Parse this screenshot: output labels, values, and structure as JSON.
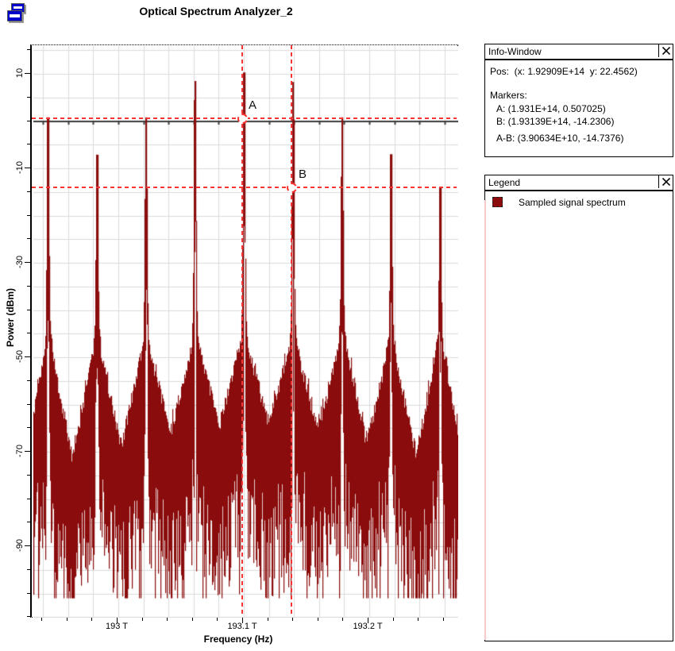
{
  "window": {
    "title": "Optical Spectrum Analyzer_2"
  },
  "info_window": {
    "title": "Info-Window",
    "pos_line": "Pos:  (x: 1.92909E+14  y: 22.4562)",
    "markers_heading": "Markers:",
    "marker_a_line": "A: (1.931E+14, 0.507025)",
    "marker_b_line": "B: (1.93139E+14, -14.2306)",
    "marker_ab_line": "A-B: (3.90634E+10, -14.7376)"
  },
  "legend": {
    "title": "Legend",
    "series": [
      {
        "label": "Sampled signal spectrum",
        "color": "#8a0c0c"
      }
    ]
  },
  "chart_data": {
    "type": "line",
    "title": "Optical Spectrum Analyzer_2",
    "xlabel": "Frequency (Hz)",
    "ylabel": "Power (dBm)",
    "grid": true,
    "series_color": "#8a0c0c",
    "x_range": [
      192932300000000.0,
      193270900000000.0
    ],
    "y_range": [
      -105.1,
      15.9
    ],
    "x_ticks": [
      {
        "value": 193000000000000.0,
        "label": "193 T"
      },
      {
        "value": 193100000000000.0,
        "label": "193.1 T"
      },
      {
        "value": 193200000000000.0,
        "label": "193.2 T"
      }
    ],
    "y_ticks": [
      {
        "value": 10,
        "label": "10"
      },
      {
        "value": -10,
        "label": "-10"
      },
      {
        "value": -30,
        "label": "-30"
      },
      {
        "value": -50,
        "label": "-50"
      },
      {
        "value": -70,
        "label": "-70"
      },
      {
        "value": -90,
        "label": "-90"
      }
    ],
    "x_minor_step": 20000000000.0,
    "y_minor_step": 5,
    "zero_line_dbm": 0,
    "channel_spacing_hz": 39063400000.0,
    "peaks": [
      {
        "freq": 192943740000000.0,
        "power": 0.8
      },
      {
        "freq": 192982810000000.0,
        "power": -7.1
      },
      {
        "freq": 193021870000000.0,
        "power": 0.8
      },
      {
        "freq": 193060940000000.0,
        "power": 8.5
      },
      {
        "freq": 193100000000000.0,
        "power": 10.3
      },
      {
        "freq": 193139060000000.0,
        "power": 8.3
      },
      {
        "freq": 193178130000000.0,
        "power": 0.8
      },
      {
        "freq": 193217190000000.0,
        "power": -7.0
      },
      {
        "freq": 193256260000000.0,
        "power": -14.0
      }
    ],
    "noise": {
      "pedestal_top_dbm": -45,
      "valley_center_dbm": -63.5,
      "valley_edge_dbm": -76.5,
      "deepest_spike_dbm": -101
    },
    "markers": [
      {
        "name": "A",
        "x": 193100000000000.0,
        "y": 0.507025
      },
      {
        "name": "B",
        "x": 193139000000000.0,
        "y": -14.2306
      }
    ]
  }
}
